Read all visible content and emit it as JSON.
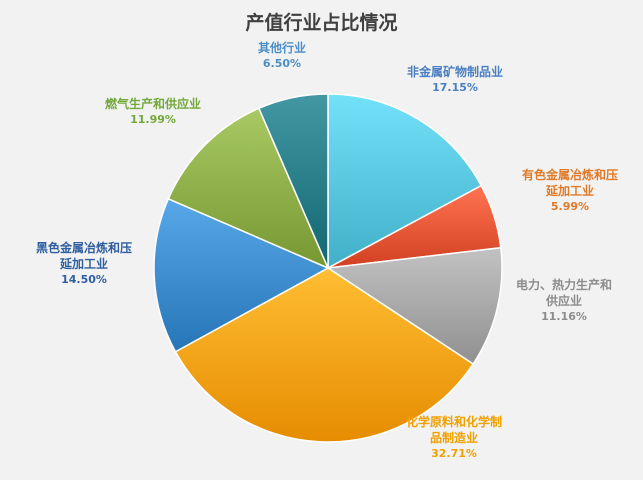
{
  "chart_data": {
    "type": "pie",
    "title": "产值行业占比情况",
    "slices": [
      {
        "name": "非金属矿物制品业",
        "name_lines": [
          "非金属矿物制品业"
        ],
        "value": 17.15,
        "pct_label": "17.15%",
        "color": "#5ac8e0",
        "label_color": "#4a7fc1"
      },
      {
        "name": "有色金属冶炼和压延加工业",
        "name_lines": [
          "有色金属冶炼和压",
          "延加工业"
        ],
        "value": 5.99,
        "pct_label": "5.99%",
        "color": "#ea5a3a",
        "label_color": "#e07a28"
      },
      {
        "name": "电力、热力生产和供应业",
        "name_lines": [
          "电力、热力生产和",
          "供应业"
        ],
        "value": 11.16,
        "pct_label": "11.16%",
        "color": "#a9a9a9",
        "label_color": "#8c8c8c"
      },
      {
        "name": "化学原料和化学制品制造业",
        "name_lines": [
          "化学原料和化学制",
          "品制造业"
        ],
        "value": 32.71,
        "pct_label": "32.71%",
        "color": "#ffa51a",
        "label_color": "#f0a000"
      },
      {
        "name": "黑色金属冶炼和压延加工业",
        "name_lines": [
          "黑色金属冶炼和压",
          "延加工业"
        ],
        "value": 14.5,
        "pct_label": "14.50%",
        "color": "#3f8fd0",
        "label_color": "#2f5f9f"
      },
      {
        "name": "燃气生产和供应业",
        "name_lines": [
          "燃气生产和供应业"
        ],
        "value": 11.99,
        "pct_label": "11.99%",
        "color": "#8fb04a",
        "label_color": "#72a83a"
      },
      {
        "name": "其他行业",
        "name_lines": [
          "其他行业"
        ],
        "value": 6.5,
        "pct_label": "6.50%",
        "color": "#2a7f8a",
        "label_color": "#4a8fc8"
      }
    ]
  }
}
